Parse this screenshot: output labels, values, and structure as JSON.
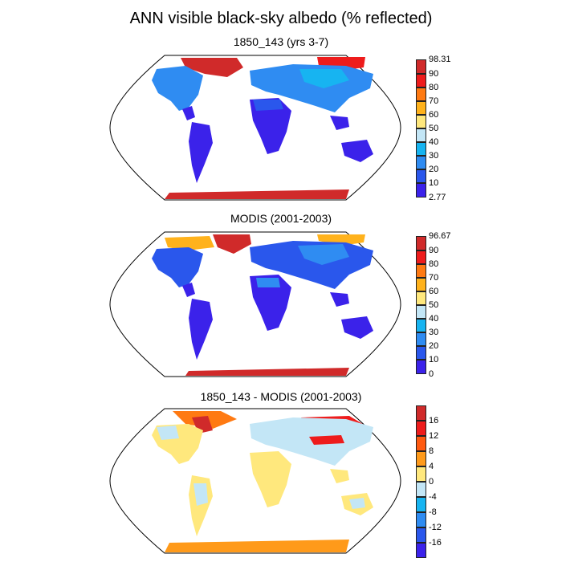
{
  "title": "ANN visible black-sky albedo (% reflected)",
  "panels": [
    {
      "title": "1850_143 (yrs 3-7)",
      "colorbar": {
        "labels": [
          "98.31",
          "90",
          "80",
          "70",
          "60",
          "50",
          "40",
          "30",
          "20",
          "10",
          "2.77"
        ],
        "colors": [
          "#d02a2a",
          "#ee1c1c",
          "#ff7a12",
          "#ffb21c",
          "#ffe87d",
          "#c3e6f6",
          "#17b4f1",
          "#2f8cf2",
          "#2a57ec",
          "#3b22ea"
        ]
      }
    },
    {
      "title": "MODIS (2001-2003)",
      "colorbar": {
        "labels": [
          "96.67",
          "90",
          "80",
          "70",
          "60",
          "50",
          "40",
          "30",
          "20",
          "10",
          "0"
        ],
        "colors": [
          "#d02a2a",
          "#ee1c1c",
          "#ff7a12",
          "#ffb21c",
          "#ffe87d",
          "#c3e6f6",
          "#17b4f1",
          "#2f8cf2",
          "#2a57ec",
          "#3b22ea"
        ]
      }
    },
    {
      "title": "1850_143 - MODIS (2001-2003)",
      "colorbar": {
        "labels": [
          "16",
          "12",
          "8",
          "4",
          "0",
          "-4",
          "-8",
          "-12",
          "-16"
        ],
        "colors": [
          "#d02a2a",
          "#ee1c1c",
          "#ff5a10",
          "#ff9a1a",
          "#ffe87d",
          "#c3e6f6",
          "#17b4f1",
          "#2f8cf2",
          "#2a57ec",
          "#3b22ea"
        ]
      }
    }
  ]
}
